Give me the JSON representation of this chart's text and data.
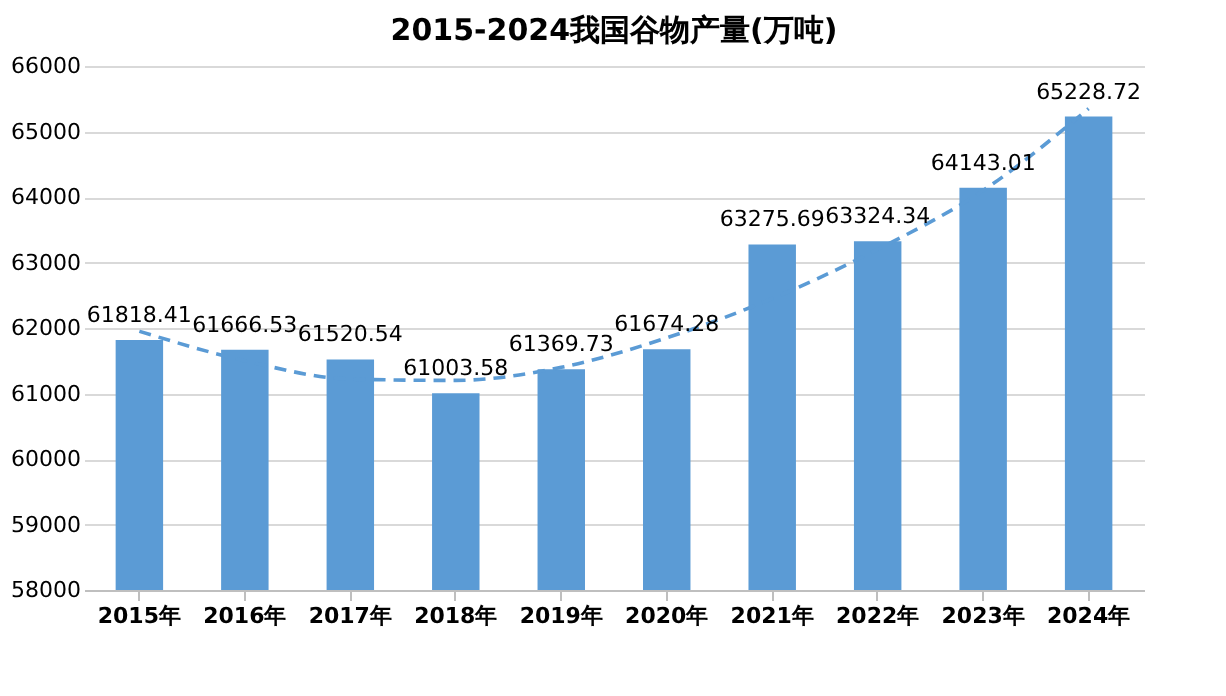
{
  "chart_data": {
    "type": "bar",
    "title": "2015-2024我国谷物产量(万吨)",
    "categories": [
      "2015年",
      "2016年",
      "2017年",
      "2018年",
      "2019年",
      "2020年",
      "2021年",
      "2022年",
      "2023年",
      "2024年"
    ],
    "ylim": [
      58000,
      66000
    ],
    "yticks": [
      58000,
      59000,
      60000,
      61000,
      62000,
      63000,
      64000,
      65000,
      66000
    ],
    "grid": "y",
    "series": [
      {
        "color": "#5b9bd5",
        "values": [
          61818.41,
          61666.53,
          61520.54,
          61003.58,
          61369.73,
          61674.28,
          63275.69,
          63324.34,
          64143.01,
          65228.72
        ],
        "value_labels": [
          "61818.41",
          "61666.53",
          "61520.54",
          "61003.58",
          "61369.73",
          "61674.28",
          "63275.69",
          "63324.34",
          "64143.01",
          "65228.72"
        ]
      },
      {
        "type": "line",
        "color": "#5b9bd5",
        "line_style": "dashed",
        "marker": "none",
        "values": [
          61950,
          61500,
          61220,
          61200,
          61400,
          61850,
          62450,
          63200,
          64100,
          65350
        ]
      }
    ]
  }
}
